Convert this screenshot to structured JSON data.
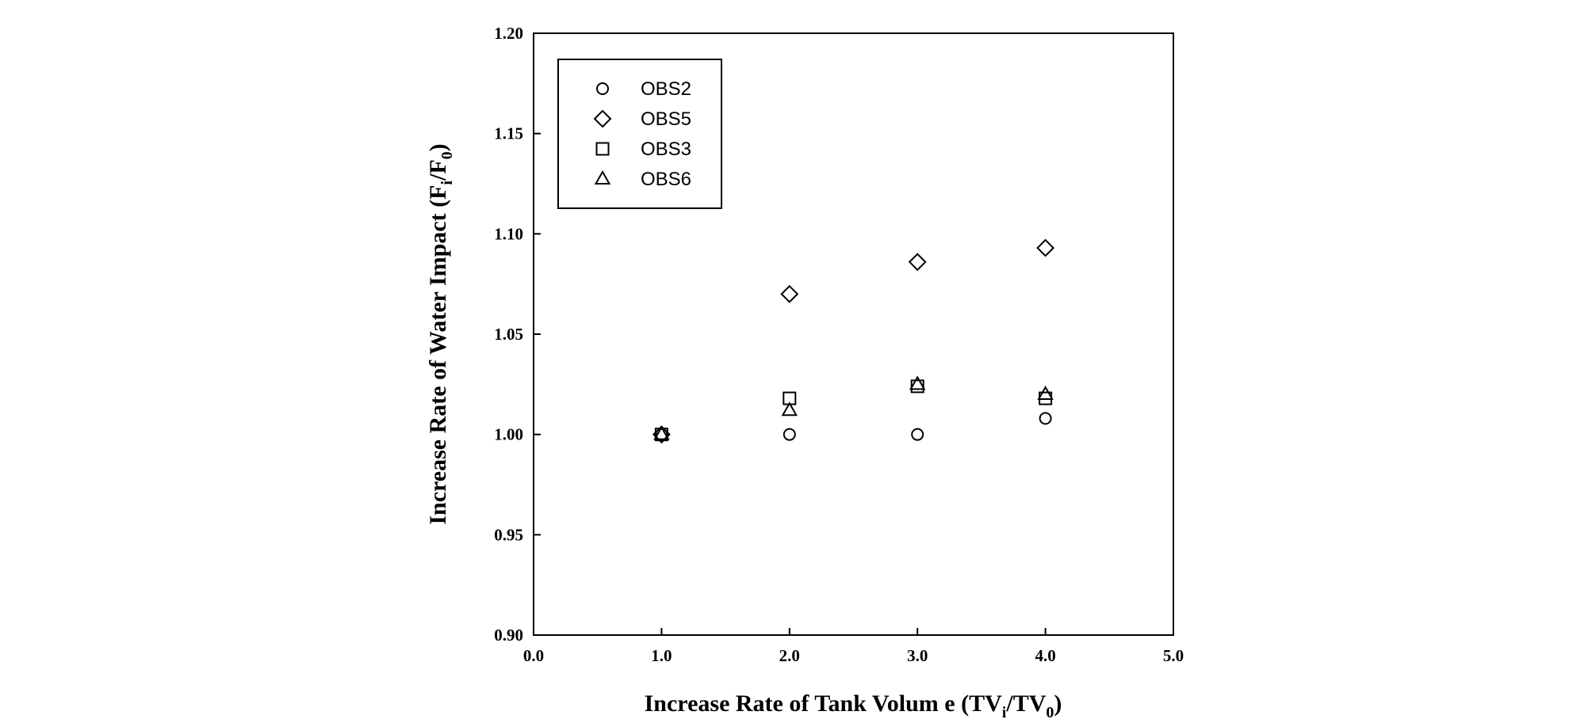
{
  "chart_data": {
    "type": "scatter",
    "xlabel": {
      "main": "Increase Rate of Tank Volum e (TV",
      "sub1": "i",
      "mid": "/TV",
      "sub2": "0",
      "end": ")"
    },
    "ylabel": {
      "main": "Increase Rate of Water Impact (F",
      "sub1": "i",
      "mid": "/F",
      "sub2": "0",
      "end": ")"
    },
    "xlim": [
      0.0,
      5.0
    ],
    "ylim": [
      0.9,
      1.2
    ],
    "x_ticks": [
      0.0,
      1.0,
      2.0,
      3.0,
      4.0,
      5.0
    ],
    "x_tick_labels": [
      "0.0",
      "1.0",
      "2.0",
      "3.0",
      "4.0",
      "5.0"
    ],
    "y_ticks": [
      0.9,
      0.95,
      1.0,
      1.05,
      1.1,
      1.15,
      1.2
    ],
    "y_tick_labels": [
      "0.90",
      "0.95",
      "1.00",
      "1.05",
      "1.10",
      "1.15",
      "1.20"
    ],
    "grid": false,
    "legend_position": "top-left",
    "series": [
      {
        "name": "OBS2",
        "marker": "circle",
        "x": [
          1.0,
          2.0,
          3.0,
          4.0
        ],
        "y": [
          1.0,
          1.0,
          1.0,
          1.008
        ]
      },
      {
        "name": "OBS5",
        "marker": "diamond",
        "x": [
          1.0,
          2.0,
          3.0,
          4.0
        ],
        "y": [
          1.0,
          1.07,
          1.086,
          1.093
        ]
      },
      {
        "name": "OBS3",
        "marker": "square",
        "x": [
          1.0,
          2.0,
          3.0,
          4.0
        ],
        "y": [
          1.0,
          1.018,
          1.024,
          1.018
        ]
      },
      {
        "name": "OBS6",
        "marker": "triangle",
        "x": [
          1.0,
          2.0,
          3.0,
          4.0
        ],
        "y": [
          1.0,
          1.012,
          1.025,
          1.02
        ]
      }
    ]
  }
}
